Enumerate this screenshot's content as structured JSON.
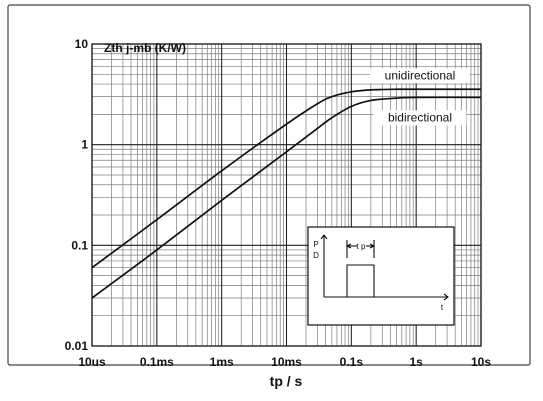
{
  "chart_data": {
    "type": "line",
    "title": "",
    "xlabel": "tp / s",
    "ylabel": "Zth j-mb (K/W)",
    "log_x": true,
    "log_y": true,
    "grid": true,
    "xlim": [
      1e-05,
      10
    ],
    "ylim": [
      0.01,
      10
    ],
    "x_ticks": [
      1e-05,
      0.0001,
      0.001,
      0.01,
      0.1,
      1,
      10
    ],
    "x_tick_labels": [
      "10us",
      "0.1ms",
      "1ms",
      "10ms",
      "0.1s",
      "1s",
      "10s"
    ],
    "y_ticks": [
      0.01,
      0.1,
      1,
      10
    ],
    "y_tick_labels": [
      "0.01",
      "0.1",
      "1",
      "10"
    ],
    "series": [
      {
        "name": "unidirectional",
        "x": [
          1e-05,
          0.0001,
          0.001,
          0.01,
          0.03,
          0.05,
          0.1,
          0.2,
          0.5,
          1,
          10
        ],
        "y": [
          0.06,
          0.18,
          0.55,
          1.6,
          2.55,
          3.0,
          3.35,
          3.5,
          3.55,
          3.55,
          3.55
        ]
      },
      {
        "name": "bidirectional",
        "x": [
          1e-05,
          0.0001,
          0.001,
          0.01,
          0.03,
          0.05,
          0.1,
          0.2,
          0.5,
          1,
          10
        ],
        "y": [
          0.03,
          0.09,
          0.28,
          0.85,
          1.45,
          1.85,
          2.4,
          2.75,
          2.9,
          2.95,
          2.95
        ]
      }
    ],
    "inset": {
      "y_axis_label_top": "P",
      "y_axis_label_bottom": "D",
      "pulse_width_label": "t p",
      "x_axis_label": "t"
    }
  }
}
